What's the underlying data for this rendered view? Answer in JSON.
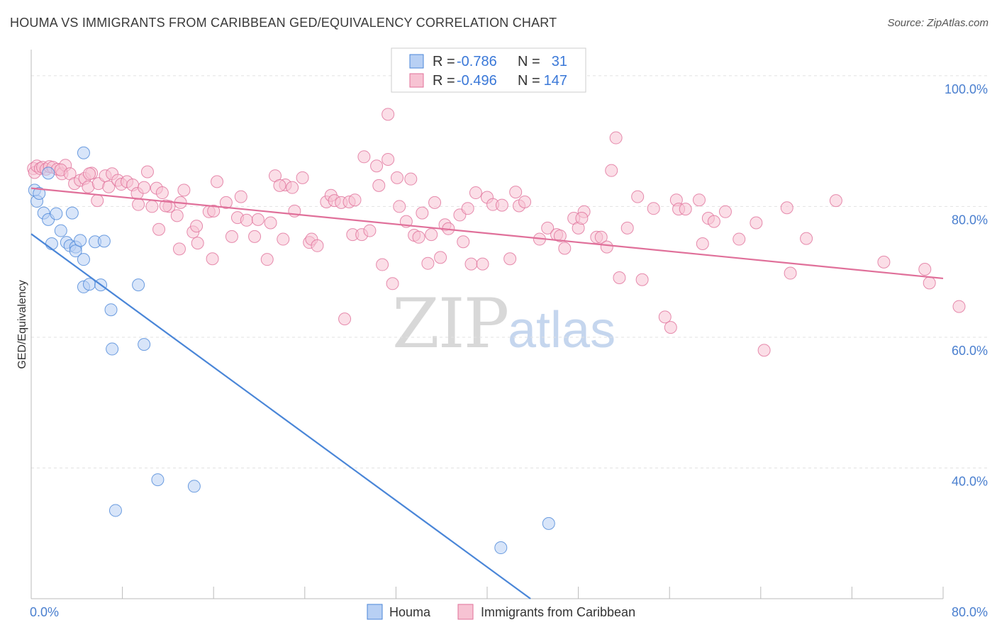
{
  "title": "HOUMA VS IMMIGRANTS FROM CARIBBEAN GED/EQUIVALENCY CORRELATION CHART",
  "source": "Source: ZipAtlas.com",
  "watermark": {
    "zip": "ZIP",
    "atlas": "atlas"
  },
  "legend_top": {
    "rows": [
      {
        "r_label": "R =",
        "r_value": "-0.786",
        "n_label": "N =",
        "n_value": "31",
        "color": "#4a86d8",
        "fill": "#b8d0f4"
      },
      {
        "r_label": "R =",
        "r_value": "-0.496",
        "n_label": "N =",
        "n_value": "147",
        "color": "#e0709a",
        "fill": "#f7c3d3"
      }
    ]
  },
  "legend_bottom": [
    {
      "label": "Houma",
      "fill": "#b8d0f4",
      "stroke": "#4a86d8"
    },
    {
      "label": "Immigrants from Caribbean",
      "fill": "#f7c3d3",
      "stroke": "#e0709a"
    }
  ],
  "chart_data": {
    "type": "scatter",
    "xlabel": "",
    "ylabel": "GED/Equivalency",
    "xlim": [
      0,
      80
    ],
    "ylim": [
      20,
      104
    ],
    "x_tick_labels": [
      "0.0%",
      "80.0%"
    ],
    "y_ticks": [
      40,
      60,
      80,
      100
    ],
    "y_tick_labels": [
      "40.0%",
      "60.0%",
      "80.0%",
      "100.0%"
    ],
    "grid": true,
    "legend_position": "top-center",
    "series": [
      {
        "name": "Houma",
        "color": "#4a86d8",
        "fill": "#b8d0f4",
        "trend": {
          "x0": 0,
          "y0": 75.8,
          "x1": 43.8,
          "y1": 20.0
        },
        "points": [
          [
            0.3,
            82.5
          ],
          [
            0.5,
            80.8
          ],
          [
            0.7,
            82.0
          ],
          [
            1.1,
            79.0
          ],
          [
            1.5,
            78.0
          ],
          [
            1.8,
            74.3
          ],
          [
            1.5,
            85.1
          ],
          [
            2.2,
            78.9
          ],
          [
            2.6,
            76.3
          ],
          [
            3.1,
            74.5
          ],
          [
            3.4,
            74.0
          ],
          [
            3.9,
            73.8
          ],
          [
            3.9,
            73.2
          ],
          [
            4.3,
            74.8
          ],
          [
            3.6,
            79.0
          ],
          [
            4.6,
            71.9
          ],
          [
            4.6,
            88.2
          ],
          [
            5.6,
            74.6
          ],
          [
            6.4,
            74.7
          ],
          [
            4.6,
            67.7
          ],
          [
            5.1,
            68.1
          ],
          [
            6.1,
            68.0
          ],
          [
            7.0,
            64.2
          ],
          [
            9.4,
            68.0
          ],
          [
            7.1,
            58.2
          ],
          [
            9.9,
            58.9
          ],
          [
            11.1,
            38.2
          ],
          [
            14.3,
            37.2
          ],
          [
            7.4,
            33.5
          ],
          [
            41.2,
            27.8
          ],
          [
            45.4,
            31.5
          ]
        ]
      },
      {
        "name": "Immigrants from Caribbean",
        "color": "#e0709a",
        "fill": "#f7c3d3",
        "trend": {
          "x0": 0,
          "y0": 82.8,
          "x1": 80,
          "y1": 69.0
        },
        "points": [
          [
            0.2,
            85.8
          ],
          [
            0.3,
            85.2
          ],
          [
            0.5,
            86.2
          ],
          [
            0.8,
            85.8
          ],
          [
            1.0,
            86.0
          ],
          [
            1.3,
            85.7
          ],
          [
            1.6,
            86.1
          ],
          [
            1.9,
            86.0
          ],
          [
            2.3,
            85.7
          ],
          [
            2.7,
            85.0
          ],
          [
            3.0,
            86.3
          ],
          [
            2.6,
            85.6
          ],
          [
            3.4,
            85.0
          ],
          [
            3.8,
            83.5
          ],
          [
            4.3,
            84.0
          ],
          [
            4.7,
            84.3
          ],
          [
            5.0,
            83.0
          ],
          [
            5.3,
            85.1
          ],
          [
            5.9,
            83.5
          ],
          [
            6.5,
            84.7
          ],
          [
            6.8,
            83.0
          ],
          [
            7.1,
            85.0
          ],
          [
            7.6,
            84.0
          ],
          [
            7.9,
            83.4
          ],
          [
            8.4,
            83.8
          ],
          [
            8.9,
            83.3
          ],
          [
            9.3,
            82.0
          ],
          [
            9.9,
            82.9
          ],
          [
            10.2,
            85.3
          ],
          [
            5.1,
            85.0
          ],
          [
            5.8,
            80.9
          ],
          [
            9.4,
            80.3
          ],
          [
            10.6,
            80.0
          ],
          [
            11.0,
            82.8
          ],
          [
            11.5,
            82.1
          ],
          [
            12.1,
            80.0
          ],
          [
            11.8,
            80.1
          ],
          [
            11.2,
            76.5
          ],
          [
            13.1,
            80.6
          ],
          [
            13.4,
            82.5
          ],
          [
            12.8,
            78.6
          ],
          [
            14.2,
            76.1
          ],
          [
            13.0,
            73.5
          ],
          [
            14.6,
            74.4
          ],
          [
            14.5,
            77.0
          ],
          [
            15.6,
            79.2
          ],
          [
            16.0,
            79.3
          ],
          [
            17.1,
            80.6
          ],
          [
            17.6,
            75.4
          ],
          [
            18.1,
            78.3
          ],
          [
            18.4,
            81.5
          ],
          [
            16.3,
            83.8
          ],
          [
            15.9,
            72.0
          ],
          [
            18.9,
            77.9
          ],
          [
            19.6,
            75.4
          ],
          [
            19.9,
            78.0
          ],
          [
            21.0,
            77.5
          ],
          [
            21.4,
            84.7
          ],
          [
            22.3,
            83.3
          ],
          [
            21.8,
            83.2
          ],
          [
            22.9,
            82.9
          ],
          [
            23.1,
            79.3
          ],
          [
            23.8,
            84.4
          ],
          [
            20.7,
            71.9
          ],
          [
            22.1,
            75.0
          ],
          [
            24.4,
            74.5
          ],
          [
            24.6,
            75.0
          ],
          [
            25.1,
            74.0
          ],
          [
            25.9,
            80.7
          ],
          [
            26.3,
            81.7
          ],
          [
            26.6,
            80.9
          ],
          [
            27.2,
            80.6
          ],
          [
            27.9,
            80.7
          ],
          [
            28.4,
            81.0
          ],
          [
            28.2,
            75.7
          ],
          [
            29.0,
            75.7
          ],
          [
            29.7,
            76.3
          ],
          [
            29.2,
            87.6
          ],
          [
            30.3,
            86.2
          ],
          [
            30.5,
            83.2
          ],
          [
            31.3,
            87.2
          ],
          [
            32.1,
            84.4
          ],
          [
            30.8,
            71.1
          ],
          [
            31.7,
            68.2
          ],
          [
            32.3,
            80.0
          ],
          [
            32.9,
            77.7
          ],
          [
            33.6,
            75.6
          ],
          [
            33.3,
            84.2
          ],
          [
            34.0,
            75.3
          ],
          [
            34.3,
            79.0
          ],
          [
            34.8,
            71.3
          ],
          [
            35.1,
            75.7
          ],
          [
            35.4,
            80.6
          ],
          [
            35.9,
            72.2
          ],
          [
            36.3,
            77.2
          ],
          [
            36.6,
            76.6
          ],
          [
            37.6,
            78.7
          ],
          [
            37.9,
            74.6
          ],
          [
            38.3,
            79.7
          ],
          [
            38.6,
            71.2
          ],
          [
            39.0,
            82.1
          ],
          [
            39.6,
            71.2
          ],
          [
            40.0,
            81.4
          ],
          [
            40.5,
            80.3
          ],
          [
            41.3,
            80.2
          ],
          [
            42.0,
            72.0
          ],
          [
            42.5,
            82.2
          ],
          [
            42.8,
            80.1
          ],
          [
            43.3,
            80.7
          ],
          [
            44.6,
            75.0
          ],
          [
            45.3,
            76.7
          ],
          [
            46.1,
            75.7
          ],
          [
            46.4,
            75.5
          ],
          [
            46.8,
            73.6
          ],
          [
            47.6,
            78.2
          ],
          [
            48.0,
            76.7
          ],
          [
            48.5,
            79.2
          ],
          [
            48.3,
            78.2
          ],
          [
            49.6,
            75.3
          ],
          [
            50.0,
            75.3
          ],
          [
            50.5,
            73.8
          ],
          [
            50.9,
            85.5
          ],
          [
            51.3,
            90.5
          ],
          [
            51.6,
            69.1
          ],
          [
            52.3,
            76.7
          ],
          [
            53.2,
            81.5
          ],
          [
            53.6,
            68.8
          ],
          [
            54.6,
            79.7
          ],
          [
            55.6,
            63.1
          ],
          [
            56.1,
            61.5
          ],
          [
            56.6,
            81.0
          ],
          [
            56.8,
            79.6
          ],
          [
            57.4,
            79.6
          ],
          [
            58.6,
            81.0
          ],
          [
            58.9,
            74.3
          ],
          [
            59.4,
            78.2
          ],
          [
            59.9,
            77.7
          ],
          [
            60.9,
            79.2
          ],
          [
            62.1,
            75.0
          ],
          [
            63.6,
            77.5
          ],
          [
            64.3,
            58.0
          ],
          [
            66.6,
            69.8
          ],
          [
            66.3,
            79.8
          ],
          [
            68.0,
            75.1
          ],
          [
            70.6,
            80.9
          ],
          [
            74.8,
            71.5
          ],
          [
            78.4,
            70.4
          ],
          [
            78.8,
            68.3
          ],
          [
            81.4,
            64.7
          ],
          [
            27.5,
            62.8
          ],
          [
            31.3,
            94.1
          ]
        ]
      }
    ]
  }
}
